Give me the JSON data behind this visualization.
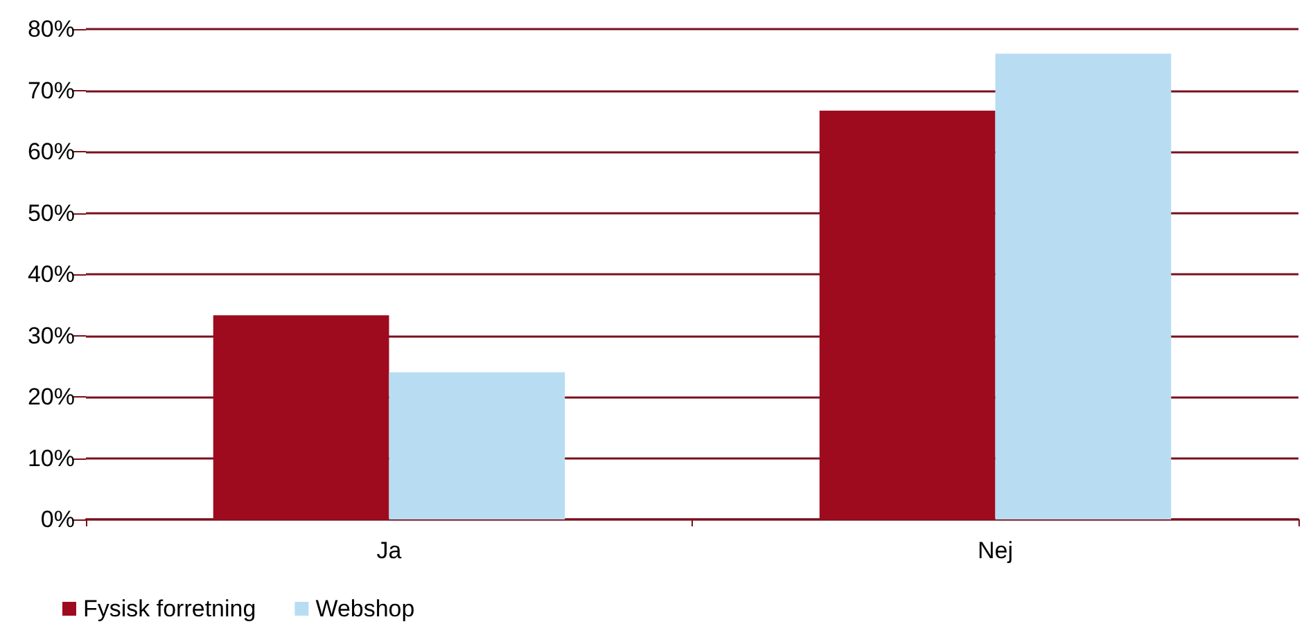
{
  "chart_data": {
    "type": "bar",
    "categories": [
      "Ja",
      "Nej"
    ],
    "series": [
      {
        "name": "Fysisk forretning",
        "color": "#9e0b1e",
        "values": [
          33.3,
          66.7
        ]
      },
      {
        "name": "Webshop",
        "color": "#b8ddf2",
        "values": [
          24,
          76
        ]
      }
    ],
    "ylim": [
      0,
      80
    ],
    "yticks": [
      {
        "value": 0,
        "label": "0%"
      },
      {
        "value": 10,
        "label": "10%"
      },
      {
        "value": 20,
        "label": "20%"
      },
      {
        "value": 30,
        "label": "30%"
      },
      {
        "value": 40,
        "label": "40%"
      },
      {
        "value": 50,
        "label": "50%"
      },
      {
        "value": 60,
        "label": "60%"
      },
      {
        "value": 70,
        "label": "70%"
      },
      {
        "value": 80,
        "label": "80%"
      }
    ],
    "grid": "y",
    "legend": "bottom left"
  }
}
